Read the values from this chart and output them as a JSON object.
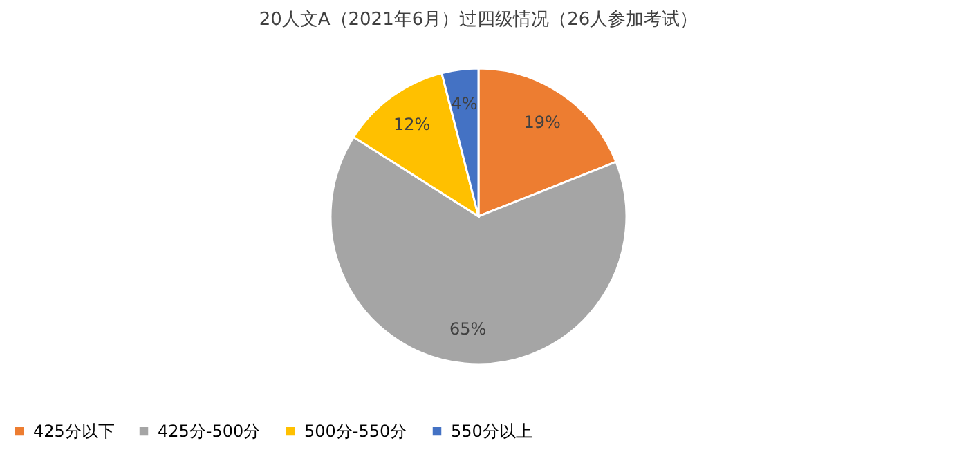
{
  "chart_data": {
    "type": "pie",
    "title": "20人文A（2021年6月）过四级情况（26人参加考试）",
    "categories": [
      "425分以下",
      "425分-500分",
      "500分-550分",
      "550分以上"
    ],
    "values": [
      19,
      65,
      12,
      4
    ],
    "colors": [
      "#ed7d31",
      "#a5a5a5",
      "#ffc000",
      "#4472c4"
    ],
    "value_labels": [
      "19%",
      "65%",
      "12%",
      "4%"
    ],
    "legend": "bottom"
  }
}
